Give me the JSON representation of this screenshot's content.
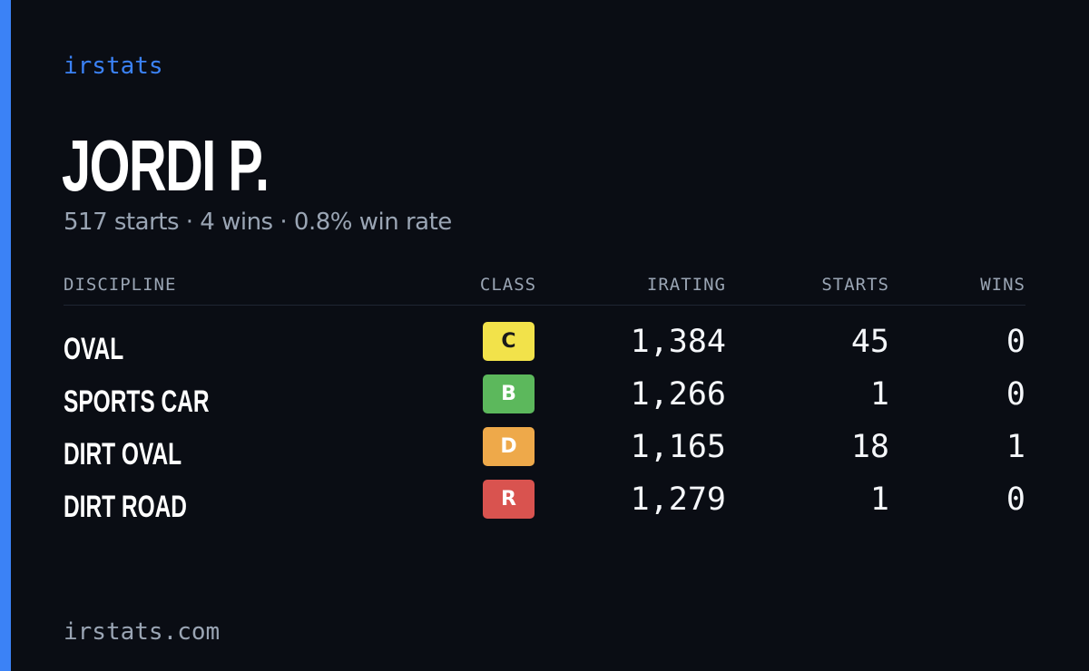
{
  "brand": "irstats",
  "driver": {
    "name": "JORDI P.",
    "summary": "517 starts · 4 wins · 0.8% win rate"
  },
  "table": {
    "headers": {
      "discipline": "DISCIPLINE",
      "class": "CLASS",
      "irating": "IRATING",
      "starts": "STARTS",
      "wins": "WINS"
    },
    "rows": [
      {
        "discipline": "OVAL",
        "class": "C",
        "class_color": "#f2e24a",
        "irating": "1,384",
        "starts": "45",
        "wins": "0"
      },
      {
        "discipline": "SPORTS CAR",
        "class": "B",
        "class_color": "#5cb85c",
        "irating": "1,266",
        "starts": "1",
        "wins": "0"
      },
      {
        "discipline": "DIRT OVAL",
        "class": "D",
        "class_color": "#eea94a",
        "irating": "1,165",
        "starts": "18",
        "wins": "1"
      },
      {
        "discipline": "DIRT ROAD",
        "class": "R",
        "class_color": "#d9534f",
        "irating": "1,279",
        "starts": "1",
        "wins": "0"
      }
    ]
  },
  "footer": "irstats.com",
  "colors": {
    "background": "#0a0d14",
    "accent": "#3b82f6",
    "muted_text": "#9aa5b4"
  }
}
